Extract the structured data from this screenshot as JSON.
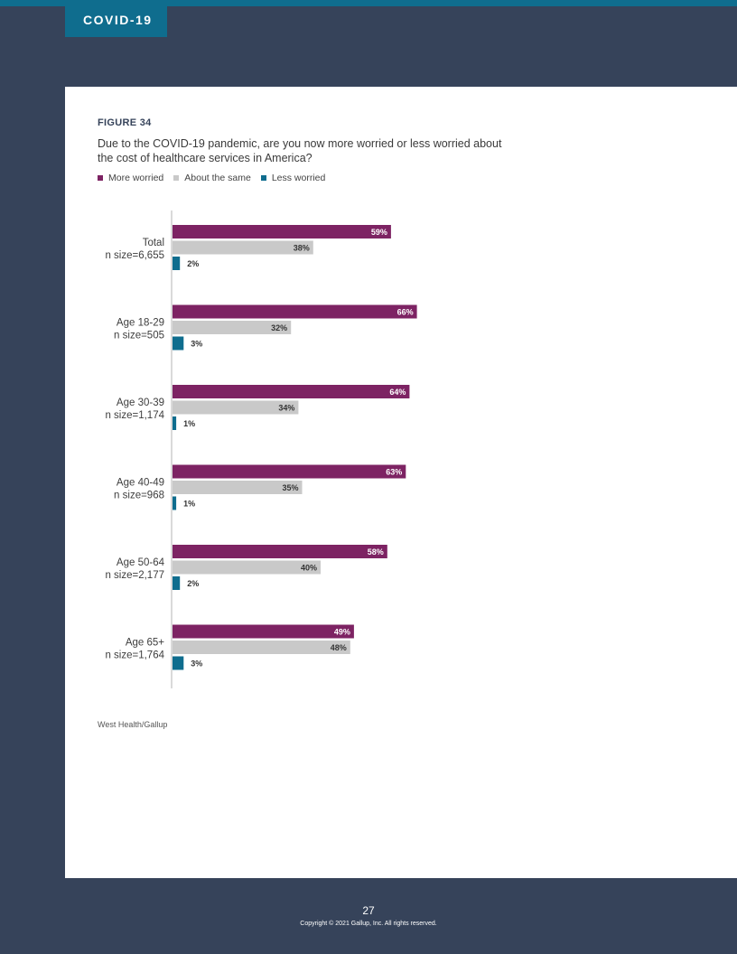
{
  "header": {
    "section_tab": "COVID-19"
  },
  "figure": {
    "label": "FIGURE 34",
    "title": "Due to the COVID-19 pandemic, are you now more worried or less worried about the cost of healthcare services in America?",
    "source": "West Health/Gallup"
  },
  "legend": [
    {
      "label": "More worried",
      "color": "#7d2363"
    },
    {
      "label": "About the same",
      "color": "#c9c9c9"
    },
    {
      "label": "Less worried",
      "color": "#0f6d8e"
    }
  ],
  "chart_data": {
    "type": "bar",
    "orientation": "horizontal",
    "categories": [
      {
        "name": "Total",
        "n": "n size=6,655"
      },
      {
        "name": "Age 18-29",
        "n": "n size=505"
      },
      {
        "name": "Age 30-39",
        "n": "n size=1,174"
      },
      {
        "name": "Age 40-49",
        "n": "n size=968"
      },
      {
        "name": "Age 50-64",
        "n": "n size=2,177"
      },
      {
        "name": "Age 65+",
        "n": "n size=1,764"
      }
    ],
    "series": [
      {
        "name": "More worried",
        "color": "#7d2363",
        "values": [
          59,
          66,
          64,
          63,
          58,
          49
        ]
      },
      {
        "name": "About the same",
        "color": "#c9c9c9",
        "values": [
          38,
          32,
          34,
          35,
          40,
          48
        ]
      },
      {
        "name": "Less worried",
        "color": "#0f6d8e",
        "values": [
          2,
          3,
          1,
          1,
          2,
          3
        ]
      }
    ],
    "value_suffix": "%",
    "xlim": [
      0,
      100
    ],
    "legend_position": "top-left",
    "grid": false
  },
  "footer": {
    "page_number": "27",
    "copyright": "Copyright © 2021 Gallup, Inc. All rights reserved."
  }
}
